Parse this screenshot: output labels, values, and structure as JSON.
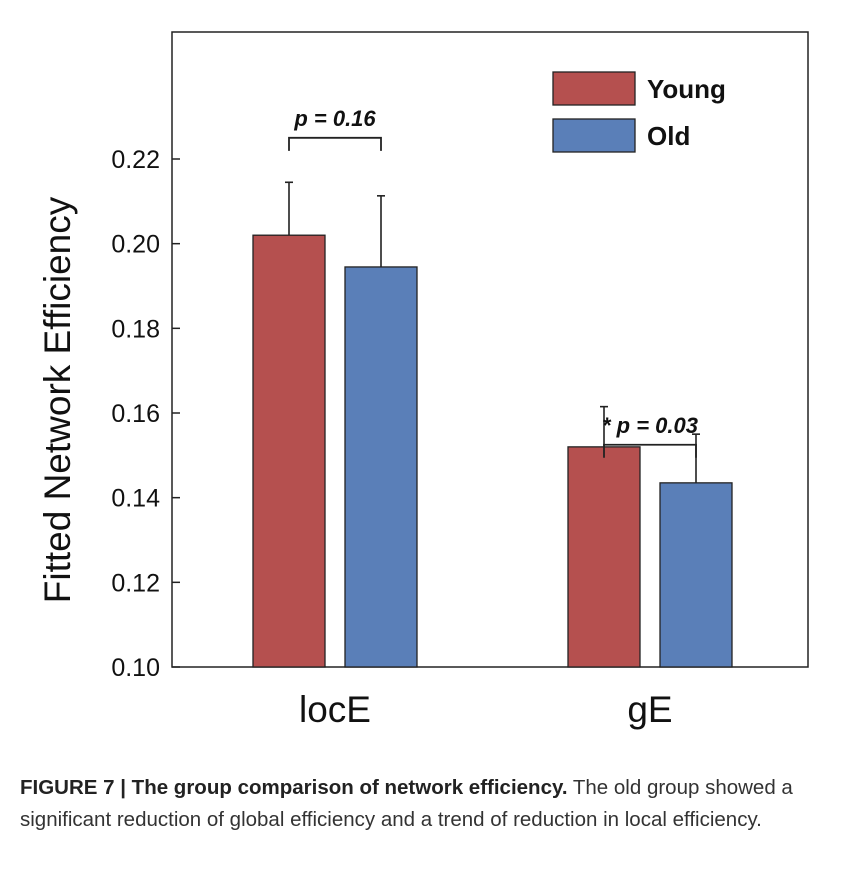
{
  "chart_data": {
    "type": "bar",
    "categories": [
      "locE",
      "gE"
    ],
    "series": [
      {
        "name": "Young",
        "color": "#b5504f",
        "values": [
          0.202,
          0.152
        ],
        "error_plus": [
          0.0125,
          0.0095
        ]
      },
      {
        "name": "Old",
        "color": "#5a7fb8",
        "values": [
          0.1945,
          0.1435
        ],
        "error_plus": [
          0.0168,
          0.0115
        ]
      }
    ],
    "ylabel": "Fitted Network Efficiency",
    "xlabel": "",
    "ylim": [
      0.1,
      0.25
    ],
    "yticks": [
      "0.10",
      "0.12",
      "0.14",
      "0.16",
      "0.18",
      "0.20",
      "0.22"
    ],
    "grid": false,
    "legend_position": "top-right",
    "annotations": [
      {
        "category": "locE",
        "label": "p = 0.16",
        "bracket_y": 0.225
      },
      {
        "category": "gE",
        "label": "* p = 0.03",
        "bracket_y": 0.1525
      }
    ]
  },
  "caption": {
    "label": "FIGURE 7 | The group comparison of network efficiency.",
    "text": " The old group showed a significant reduction of global efficiency and a trend of reduction in local efficiency."
  }
}
